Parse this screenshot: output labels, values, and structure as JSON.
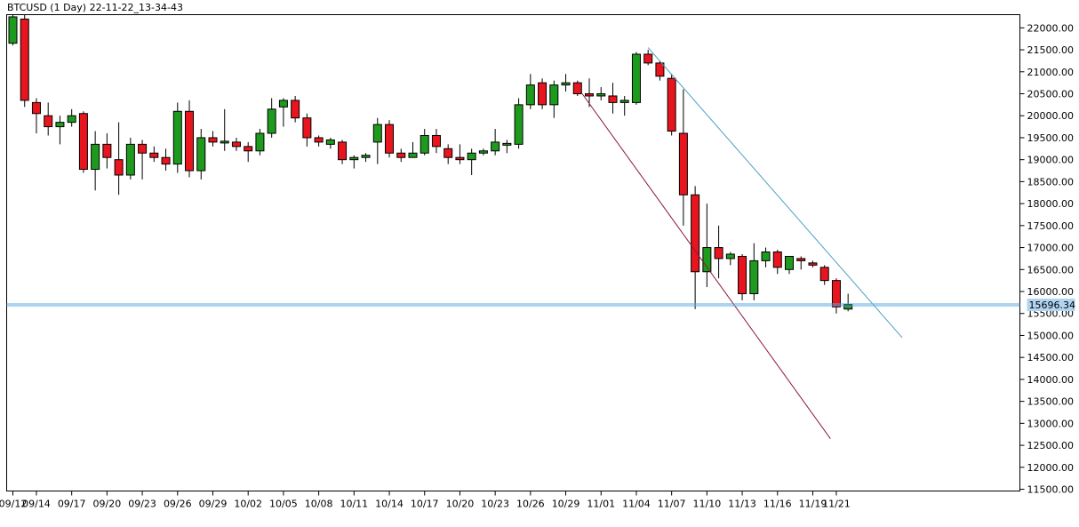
{
  "chart_data": {
    "type": "candlestick",
    "title": "BTCUSD (1 Day) 22-11-22_13-34-43",
    "current_price_label": "15696.34",
    "current_price": 15696.34,
    "ylim": [
      11460,
      22300
    ],
    "y_ticks": [
      22000,
      21500,
      21000,
      20500,
      20000,
      19500,
      19000,
      18500,
      18000,
      17500,
      17000,
      16500,
      16000,
      15500,
      15000,
      14500,
      14000,
      13500,
      13000,
      12500,
      12000,
      11500
    ],
    "y_tick_labels": [
      "22000.00",
      "21500.00",
      "21000.00",
      "20500.00",
      "20000.00",
      "19500.00",
      "19000.00",
      "18500.00",
      "18000.00",
      "17500.00",
      "17000.00",
      "16500.00",
      "16000.00",
      "15500.00",
      "15000.00",
      "14500.00",
      "14000.00",
      "13500.00",
      "13000.00",
      "12500.00",
      "12000.00",
      "11500.00"
    ],
    "x_tick_labels": [
      {
        "label": "09/12",
        "index": 0
      },
      {
        "label": "09/14",
        "index": 2
      },
      {
        "label": "09/17",
        "index": 5
      },
      {
        "label": "09/20",
        "index": 8
      },
      {
        "label": "09/23",
        "index": 11
      },
      {
        "label": "09/26",
        "index": 14
      },
      {
        "label": "09/29",
        "index": 17
      },
      {
        "label": "10/02",
        "index": 20
      },
      {
        "label": "10/05",
        "index": 23
      },
      {
        "label": "10/08",
        "index": 26
      },
      {
        "label": "10/11",
        "index": 29
      },
      {
        "label": "10/14",
        "index": 32
      },
      {
        "label": "10/17",
        "index": 35
      },
      {
        "label": "10/20",
        "index": 38
      },
      {
        "label": "10/23",
        "index": 41
      },
      {
        "label": "10/26",
        "index": 44
      },
      {
        "label": "10/29",
        "index": 47
      },
      {
        "label": "11/01",
        "index": 50
      },
      {
        "label": "11/04",
        "index": 53
      },
      {
        "label": "11/07",
        "index": 56
      },
      {
        "label": "11/10",
        "index": 59
      },
      {
        "label": "11/13",
        "index": 62
      },
      {
        "label": "11/16",
        "index": 65
      },
      {
        "label": "11/19",
        "index": 68
      },
      {
        "label": "11/21",
        "index": 70
      }
    ],
    "candles": [
      {
        "date": "09/12",
        "o": 21650,
        "h": 22300,
        "l": 21600,
        "c": 22250
      },
      {
        "date": "09/13",
        "o": 22200,
        "h": 22300,
        "l": 20200,
        "c": 20350
      },
      {
        "date": "09/14",
        "o": 20300,
        "h": 20400,
        "l": 19600,
        "c": 20050
      },
      {
        "date": "09/15",
        "o": 20000,
        "h": 20300,
        "l": 19550,
        "c": 19750
      },
      {
        "date": "09/16",
        "o": 19750,
        "h": 20000,
        "l": 19350,
        "c": 19850
      },
      {
        "date": "09/17",
        "o": 19850,
        "h": 20150,
        "l": 19750,
        "c": 20000
      },
      {
        "date": "09/18",
        "o": 20050,
        "h": 20100,
        "l": 18700,
        "c": 18780
      },
      {
        "date": "09/19",
        "o": 18780,
        "h": 19650,
        "l": 18300,
        "c": 19350
      },
      {
        "date": "09/20",
        "o": 19350,
        "h": 19600,
        "l": 18800,
        "c": 19050
      },
      {
        "date": "09/21",
        "o": 19000,
        "h": 19850,
        "l": 18200,
        "c": 18650
      },
      {
        "date": "09/22",
        "o": 18650,
        "h": 19500,
        "l": 18550,
        "c": 19350
      },
      {
        "date": "09/23",
        "o": 19350,
        "h": 19450,
        "l": 18550,
        "c": 19150
      },
      {
        "date": "09/24",
        "o": 19150,
        "h": 19300,
        "l": 18950,
        "c": 19050
      },
      {
        "date": "09/25",
        "o": 19050,
        "h": 19250,
        "l": 18750,
        "c": 18900
      },
      {
        "date": "09/26",
        "o": 18900,
        "h": 20300,
        "l": 18700,
        "c": 20100
      },
      {
        "date": "09/27",
        "o": 20100,
        "h": 20350,
        "l": 18600,
        "c": 18750
      },
      {
        "date": "09/28",
        "o": 18750,
        "h": 19700,
        "l": 18550,
        "c": 19500
      },
      {
        "date": "09/29",
        "o": 19500,
        "h": 19650,
        "l": 19300,
        "c": 19400
      },
      {
        "date": "09/30",
        "o": 19400,
        "h": 20150,
        "l": 19200,
        "c": 19400
      },
      {
        "date": "10/01",
        "o": 19400,
        "h": 19500,
        "l": 19200,
        "c": 19300
      },
      {
        "date": "10/02",
        "o": 19300,
        "h": 19400,
        "l": 18950,
        "c": 19200
      },
      {
        "date": "10/03",
        "o": 19200,
        "h": 19700,
        "l": 19100,
        "c": 19600
      },
      {
        "date": "10/04",
        "o": 19600,
        "h": 20400,
        "l": 19500,
        "c": 20150
      },
      {
        "date": "10/05",
        "o": 20200,
        "h": 20400,
        "l": 19750,
        "c": 20350
      },
      {
        "date": "10/06",
        "o": 20350,
        "h": 20450,
        "l": 19850,
        "c": 19950
      },
      {
        "date": "10/07",
        "o": 19950,
        "h": 20050,
        "l": 19300,
        "c": 19500
      },
      {
        "date": "10/08",
        "o": 19500,
        "h": 19550,
        "l": 19300,
        "c": 19400
      },
      {
        "date": "10/09",
        "o": 19350,
        "h": 19500,
        "l": 19250,
        "c": 19450
      },
      {
        "date": "10/10",
        "o": 19400,
        "h": 19450,
        "l": 18900,
        "c": 19000
      },
      {
        "date": "10/11",
        "o": 19000,
        "h": 19100,
        "l": 18800,
        "c": 19050
      },
      {
        "date": "10/12",
        "o": 19050,
        "h": 19150,
        "l": 18950,
        "c": 19100
      },
      {
        "date": "10/13",
        "o": 19400,
        "h": 19950,
        "l": 18900,
        "c": 19800
      },
      {
        "date": "10/14",
        "o": 19800,
        "h": 19900,
        "l": 19050,
        "c": 19150
      },
      {
        "date": "10/15",
        "o": 19150,
        "h": 19250,
        "l": 18950,
        "c": 19050
      },
      {
        "date": "10/16",
        "o": 19050,
        "h": 19400,
        "l": 19050,
        "c": 19150
      },
      {
        "date": "10/17",
        "o": 19150,
        "h": 19700,
        "l": 19100,
        "c": 19550
      },
      {
        "date": "10/18",
        "o": 19550,
        "h": 19700,
        "l": 19150,
        "c": 19300
      },
      {
        "date": "10/19",
        "o": 19250,
        "h": 19350,
        "l": 18900,
        "c": 19050
      },
      {
        "date": "10/20",
        "o": 19050,
        "h": 19350,
        "l": 18900,
        "c": 19000
      },
      {
        "date": "10/21",
        "o": 19000,
        "h": 19250,
        "l": 18650,
        "c": 19150
      },
      {
        "date": "10/22",
        "o": 19150,
        "h": 19250,
        "l": 19100,
        "c": 19200
      },
      {
        "date": "10/23",
        "o": 19200,
        "h": 19700,
        "l": 19100,
        "c": 19400
      },
      {
        "date": "10/24",
        "o": 19350,
        "h": 19450,
        "l": 19150,
        "c": 19350
      },
      {
        "date": "10/25",
        "o": 19350,
        "h": 20400,
        "l": 19250,
        "c": 20250
      },
      {
        "date": "10/26",
        "o": 20250,
        "h": 20950,
        "l": 20150,
        "c": 20700
      },
      {
        "date": "10/27",
        "o": 20750,
        "h": 20850,
        "l": 20150,
        "c": 20250
      },
      {
        "date": "10/28",
        "o": 20250,
        "h": 20800,
        "l": 19950,
        "c": 20700
      },
      {
        "date": "10/29",
        "o": 20700,
        "h": 20950,
        "l": 20550,
        "c": 20750
      },
      {
        "date": "10/30",
        "o": 20750,
        "h": 20800,
        "l": 20450,
        "c": 20500
      },
      {
        "date": "10/31",
        "o": 20500,
        "h": 20850,
        "l": 20200,
        "c": 20450
      },
      {
        "date": "11/01",
        "o": 20450,
        "h": 20650,
        "l": 20350,
        "c": 20500
      },
      {
        "date": "11/02",
        "o": 20450,
        "h": 20750,
        "l": 20050,
        "c": 20300
      },
      {
        "date": "11/03",
        "o": 20300,
        "h": 20450,
        "l": 20000,
        "c": 20350
      },
      {
        "date": "11/04",
        "o": 20300,
        "h": 21450,
        "l": 20250,
        "c": 21400
      },
      {
        "date": "11/05",
        "o": 21400,
        "h": 21500,
        "l": 21150,
        "c": 21200
      },
      {
        "date": "11/06",
        "o": 21200,
        "h": 21250,
        "l": 20800,
        "c": 20900
      },
      {
        "date": "11/07",
        "o": 20850,
        "h": 20950,
        "l": 19550,
        "c": 19650
      },
      {
        "date": "11/08",
        "o": 19600,
        "h": 20600,
        "l": 17500,
        "c": 18200
      },
      {
        "date": "11/09",
        "o": 18200,
        "h": 18400,
        "l": 15600,
        "c": 16450
      },
      {
        "date": "11/10",
        "o": 16450,
        "h": 18000,
        "l": 16100,
        "c": 17000
      },
      {
        "date": "11/11",
        "o": 17000,
        "h": 17500,
        "l": 16300,
        "c": 16750
      },
      {
        "date": "11/12",
        "o": 16750,
        "h": 16900,
        "l": 16600,
        "c": 16850
      },
      {
        "date": "11/13",
        "o": 16800,
        "h": 16850,
        "l": 15800,
        "c": 15950
      },
      {
        "date": "11/14",
        "o": 15950,
        "h": 17100,
        "l": 15800,
        "c": 16700
      },
      {
        "date": "11/15",
        "o": 16700,
        "h": 17000,
        "l": 16550,
        "c": 16900
      },
      {
        "date": "11/16",
        "o": 16900,
        "h": 16950,
        "l": 16400,
        "c": 16550
      },
      {
        "date": "11/17",
        "o": 16500,
        "h": 16750,
        "l": 16400,
        "c": 16800
      },
      {
        "date": "11/18",
        "o": 16750,
        "h": 16800,
        "l": 16500,
        "c": 16700
      },
      {
        "date": "11/19",
        "o": 16650,
        "h": 16700,
        "l": 16550,
        "c": 16600
      },
      {
        "date": "11/20",
        "o": 16550,
        "h": 16600,
        "l": 16150,
        "c": 16250
      },
      {
        "date": "11/21",
        "o": 16250,
        "h": 16300,
        "l": 15500,
        "c": 15650
      },
      {
        "date": "11/22",
        "o": 15600,
        "h": 15950,
        "l": 15550,
        "c": 15700
      }
    ],
    "trendlines": [
      {
        "name": "",
        "color": "#4c9fc4",
        "from": {
          "index": 54,
          "price": 21550
        },
        "to": {
          "index": 75.6,
          "price": 14950
        }
      },
      {
        "name": "",
        "color": "#8b1a3a",
        "from": {
          "index": 48.4,
          "price": 20500
        },
        "to": {
          "index": 69.5,
          "price": 12650
        }
      }
    ],
    "grid": false,
    "colors": {
      "bull": "#1e9a1e",
      "bear": "#e8141e",
      "price_line": "#5aaadc",
      "price_label_bg": "#b0d4f1"
    }
  }
}
